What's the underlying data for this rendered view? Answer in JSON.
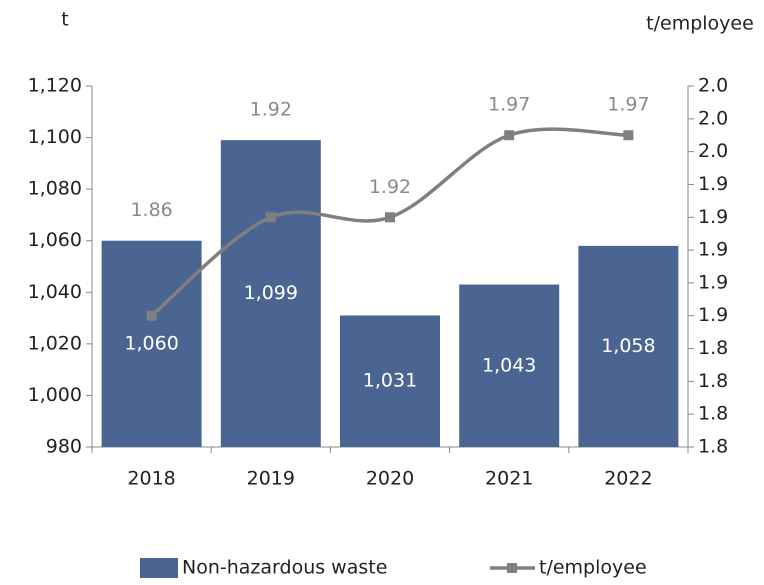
{
  "chart_data": {
    "type": "bar",
    "ylabel": "t",
    "y2label": "t/employee",
    "categories": [
      "2018",
      "2019",
      "2020",
      "2021",
      "2022"
    ],
    "ylim": [
      980,
      1120
    ],
    "yticks": [
      980,
      {
        "value": 1000,
        "label": "1,000"
      },
      {
        "value": 1020,
        "label": "1,020"
      },
      {
        "value": 1040,
        "label": "1,040"
      },
      {
        "value": 1060,
        "label": "1,060"
      },
      {
        "value": 1080,
        "label": "1,080"
      },
      {
        "value": 1100,
        "label": "1,100"
      },
      {
        "value": 1120,
        "label": "1,120"
      }
    ],
    "y2lim": [
      1.78,
      2.0
    ],
    "y2ticks": [
      {
        "value": 1.78,
        "label": "1.8"
      },
      {
        "value": 1.8,
        "label": "1.8"
      },
      {
        "value": 1.82,
        "label": "1.8"
      },
      {
        "value": 1.84,
        "label": "1.8"
      },
      {
        "value": 1.86,
        "label": "1.9"
      },
      {
        "value": 1.88,
        "label": "1.9"
      },
      {
        "value": 1.9,
        "label": "1.9"
      },
      {
        "value": 1.92,
        "label": "1.9"
      },
      {
        "value": 1.94,
        "label": "1.9"
      },
      {
        "value": 1.96,
        "label": "2.0"
      },
      {
        "value": 1.98,
        "label": "2.0"
      },
      {
        "value": 2.0,
        "label": "2.0"
      }
    ],
    "series": [
      {
        "name": "Non-hazardous waste",
        "type": "bar",
        "color": "#4a6591",
        "values": [
          1060,
          1099,
          1031,
          1043,
          1058
        ],
        "value_labels": [
          "1,060",
          "1,099",
          "1,031",
          "1,043",
          "1,058"
        ]
      },
      {
        "name": "t/employee",
        "type": "line",
        "axis": "y2",
        "color": "#7f7f7f",
        "values": [
          1.86,
          1.92,
          1.92,
          1.97,
          1.97
        ]
      }
    ]
  }
}
